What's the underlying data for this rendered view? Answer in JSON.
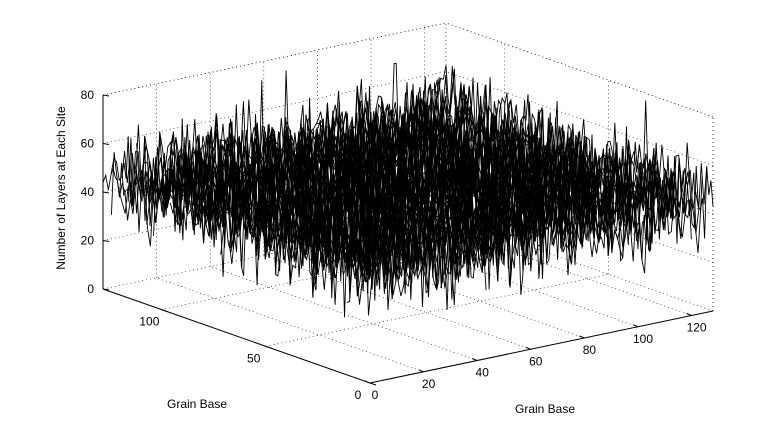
{
  "chart_data": {
    "type": "surface-mesh-3d",
    "title": "",
    "xlabel": "Grain Base",
    "ylabel": "Grain Base",
    "zlabel": "Number of Layers at Each Site",
    "xlim": [
      0,
      128
    ],
    "ylim": [
      0,
      128
    ],
    "zlim": [
      0,
      80
    ],
    "xticks": [
      0,
      20,
      40,
      60,
      80,
      100,
      120
    ],
    "yticks": [
      0,
      50,
      100
    ],
    "zticks": [
      0,
      20,
      40,
      60,
      80
    ],
    "grid": true,
    "surface": {
      "grid_size": 128,
      "mean_height": 45,
      "range_min": 20,
      "range_max": 85
    }
  }
}
